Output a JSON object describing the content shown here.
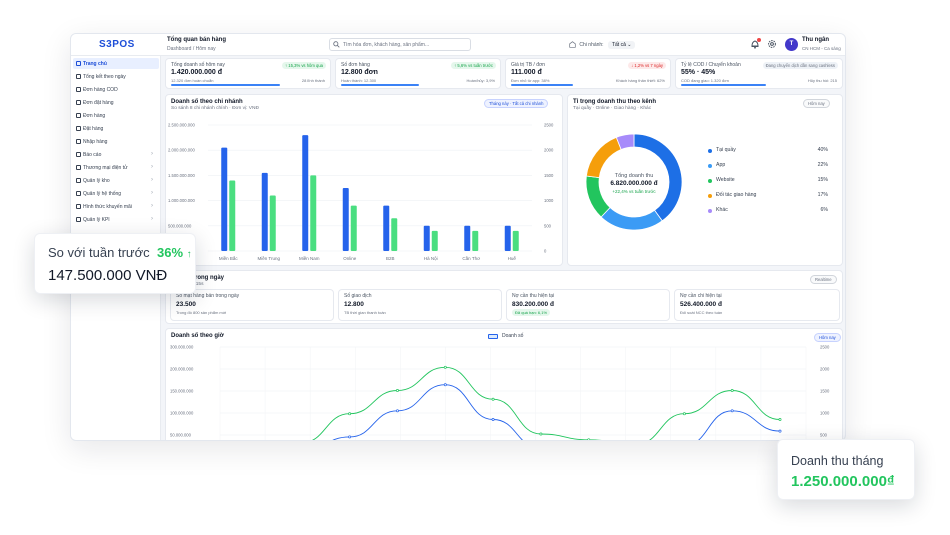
{
  "app": {
    "logo": "S3POS"
  },
  "header": {
    "title": "Tổng quan bán hàng",
    "breadcrumb": "Dashboard / Hôm nay",
    "search_placeholder": "Tìm hóa đơn, khách hàng, sản phẩm...",
    "branch_label": "Chi nhánh:",
    "branch_value": "Tất cả",
    "user_initial": "T",
    "user_name": "Thu ngân",
    "user_branch": "CN HCM - Ca sáng"
  },
  "sidebar": {
    "items": [
      {
        "label": "Trang chủ",
        "active": true,
        "chevron": false
      },
      {
        "label": "Tổng kết theo ngày",
        "active": false,
        "chevron": false
      },
      {
        "label": "Đơn hàng COD",
        "active": false,
        "chevron": false
      },
      {
        "label": "Đơn đặt hàng",
        "active": false,
        "chevron": false
      },
      {
        "label": "Đơn hàng",
        "active": false,
        "chevron": false
      },
      {
        "label": "Đặt hàng",
        "active": false,
        "chevron": false
      },
      {
        "label": "Nhập hàng",
        "active": false,
        "chevron": false
      },
      {
        "label": "Báo cáo",
        "active": false,
        "chevron": true
      },
      {
        "label": "Thương mại điện tử",
        "active": false,
        "chevron": true
      },
      {
        "label": "Quản lý kho",
        "active": false,
        "chevron": true
      },
      {
        "label": "Quản lý hệ thống",
        "active": false,
        "chevron": true
      },
      {
        "label": "Hình thức khuyến mãi",
        "active": false,
        "chevron": true
      },
      {
        "label": "Quản lý KPI",
        "active": false,
        "chevron": true
      }
    ]
  },
  "kpis": [
    {
      "label": "Tổng doanh số hôm nay",
      "value": "1.420.000.000 đ",
      "badge": "↑ 15,3% vs hôm qua",
      "trend": "up",
      "sub_left": "12.320 đơn hoàn chuẩn",
      "sub_right": "28 lĩnh thành",
      "bar_color": "#3b82f6",
      "bar_fill": 0.7
    },
    {
      "label": "Số đơn hàng",
      "value": "12.800 đơn",
      "badge": "↑ 5,6% vs tuần trước",
      "trend": "up",
      "sub_left": "Hoàn thành: 12.300",
      "sub_right": "Hoàn/hủy: 3,9%",
      "bar_color": "#3b82f6",
      "bar_fill": 0.5
    },
    {
      "label": "Giá trị TB / đơn",
      "value": "111.000 đ",
      "badge": "↓ 1,2% vs 7 ngày",
      "trend": "down",
      "sub_left": "Đơn nhỏ từ app: 38%",
      "sub_right": "Khách hàng thân thiết: 62%",
      "bar_color": "#3b82f6",
      "bar_fill": 0.4
    },
    {
      "label": "Tỷ lệ COD / Chuyển khoản",
      "value": "55% · 45%",
      "badge": "Đang chuyển dịch dần sang cashless",
      "trend": "info",
      "sub_left": "COD đang giao: 1.320 đơn",
      "sub_right": "Hủy thu hồi: 215",
      "bar_color": "#3b82f6",
      "bar_fill": 0.55
    }
  ],
  "branch_chart": {
    "title": "Doanh số theo chi nhánh",
    "subtitle": "So sánh 8 chi nhánh chính · Đơn vị: VNĐ",
    "filter_label": "Tháng này · Tất cả chi nhánh"
  },
  "channel": {
    "title": "Tỉ trọng doanh thu theo kênh",
    "subtitle": "Tại quầy · Online · Giao hàng · Khác",
    "filter_label": "Hôm nay",
    "center_label": "Tổng doanh thu",
    "center_value": "6.820.000.000 đ",
    "center_delta": "+22,4% vs tuần trước"
  },
  "mid": {
    "title_visible": "nh trong ngày",
    "sub_visible": "t mỗi 15s",
    "realtime_label": "Realtime",
    "stats": [
      {
        "label": "Số mặt hàng bán trong ngày",
        "value": "23.500",
        "sub": "Trong đó 800 sản phẩm mới",
        "tag": ""
      },
      {
        "label": "Số giao dịch",
        "value": "12.800",
        "sub": "TB thời gian thanh toán",
        "tag": ""
      },
      {
        "label": "Nợ cần thu hiện tại",
        "value": "830.200.000 đ",
        "sub": "",
        "tag": "Đã quá hạn: 6,1%"
      },
      {
        "label": "Nợ cần chi hiện tại",
        "value": "526.400.000 đ",
        "sub": "Đối soát NCC theo tuần",
        "tag": ""
      }
    ]
  },
  "hourly": {
    "title": "Doanh số theo giờ",
    "legend_label": "Doanh số",
    "filter_label": "Hôm nay"
  },
  "floats": {
    "week_label": "So với tuần trước",
    "week_pct": "36%",
    "week_arrow": "↑",
    "week_value": "147.500.000 VNĐ",
    "month_label": "Doanh thu tháng",
    "month_value": "1.250.000.000₫"
  },
  "chart_data": [
    {
      "type": "bar",
      "title": "Doanh số theo chi nhánh",
      "categories": [
        "Miền Bắc",
        "Miền Trung",
        "Miền Nam",
        "Online",
        "B2B",
        "Hà Nội",
        "Cần Thơ",
        "Huế"
      ],
      "series": [
        {
          "axis": "left",
          "color": "#2563eb",
          "values": [
            2050000000,
            1550000000,
            2300000000,
            1250000000,
            900000000,
            500000000,
            500000000,
            500000000
          ]
        },
        {
          "axis": "right",
          "color": "#4ade80",
          "values": [
            1400,
            1100,
            1500,
            900,
            650,
            400,
            400,
            400
          ]
        }
      ],
      "y_ticks": [
        "2.500.000.000",
        "2.000.000.000",
        "1.500.000.000",
        "1.000.000.000",
        "500.000.000",
        "0"
      ],
      "y_right_ticks": [
        "2500",
        "2000",
        "1500",
        "1000",
        "500",
        "0"
      ],
      "ylim": [
        0,
        2500000000
      ],
      "y2lim": [
        0,
        2500
      ],
      "grid": true
    },
    {
      "type": "pie",
      "title": "Tỉ trọng doanh thu theo kênh",
      "labels": [
        "Tại quầy",
        "App",
        "Website",
        "Đối tác giao hàng",
        "Khác"
      ],
      "values": [
        40,
        22,
        15,
        17,
        6
      ],
      "pct_labels": [
        "40%",
        "22%",
        "15%",
        "17%",
        "6%"
      ],
      "colors": [
        "#1d6fe6",
        "#3b9bf5",
        "#22c55e",
        "#f59e0b",
        "#a78bfa"
      ]
    },
    {
      "type": "line",
      "title": "Doanh số theo giờ",
      "x_count": 12,
      "series": [
        {
          "name": "Doanh số",
          "color": "#22c55e",
          "values": [
            20000000,
            70000000,
            170000000,
            250000000,
            330000000,
            220000000,
            100000000,
            80000000,
            65000000,
            170000000,
            250000000,
            150000000
          ]
        },
        {
          "color": "#2563eb",
          "values": [
            0,
            40000000,
            90000000,
            180000000,
            270000000,
            150000000,
            50000000,
            45000000,
            40000000,
            60000000,
            180000000,
            110000000
          ]
        }
      ],
      "y_ticks": [
        "300.000.000",
        "200.000.000",
        "150.000.000",
        "100.000.000",
        "50.000.000"
      ],
      "y_right_ticks": [
        "2500",
        "2000",
        "1500",
        "1000",
        "500"
      ],
      "ylim": [
        0,
        400000000
      ],
      "grid": true
    }
  ]
}
